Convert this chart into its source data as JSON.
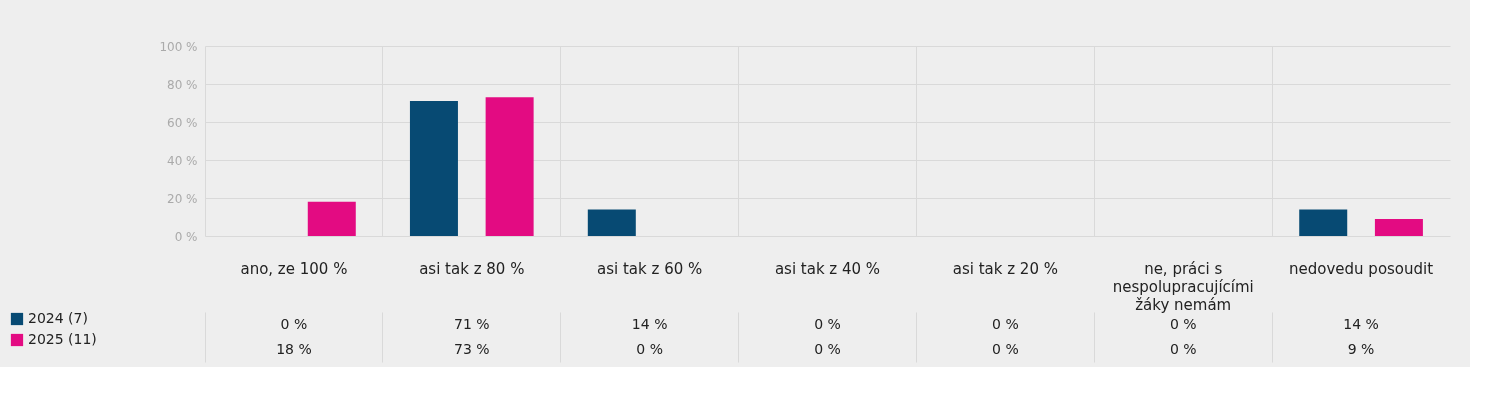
{
  "chart_data": {
    "type": "bar",
    "categories": [
      "ano, ze 100 %",
      "asi tak z 80 %",
      "asi tak z 60 %",
      "asi tak z 40 %",
      "asi tak z 20 %",
      "ne, práci s nespolupracujícími žáky nemám",
      "nedovedu posoudit"
    ],
    "series": [
      {
        "name": "2024 (7)",
        "color": "#074a73",
        "values": [
          0,
          71,
          14,
          0,
          0,
          0,
          14
        ],
        "value_labels": [
          "0 %",
          "71 %",
          "14 %",
          "0 %",
          "0 %",
          "0 %",
          "14 %"
        ]
      },
      {
        "name": "2025 (11)",
        "color": "#e30b82",
        "values": [
          18,
          73,
          0,
          0,
          0,
          0,
          9
        ],
        "value_labels": [
          "18 %",
          "73 %",
          "0 %",
          "0 %",
          "0 %",
          "0 %",
          "9 %"
        ]
      }
    ],
    "ylim": [
      0,
      100
    ],
    "yticks": [
      {
        "value": 0,
        "label": "0 %"
      },
      {
        "value": 20,
        "label": "20 %"
      },
      {
        "value": 40,
        "label": "40 %"
      },
      {
        "value": 60,
        "label": "60 %"
      },
      {
        "value": 80,
        "label": "80 %"
      },
      {
        "value": 100,
        "label": "100 %"
      }
    ],
    "grid": true,
    "legend": "bottom left"
  }
}
